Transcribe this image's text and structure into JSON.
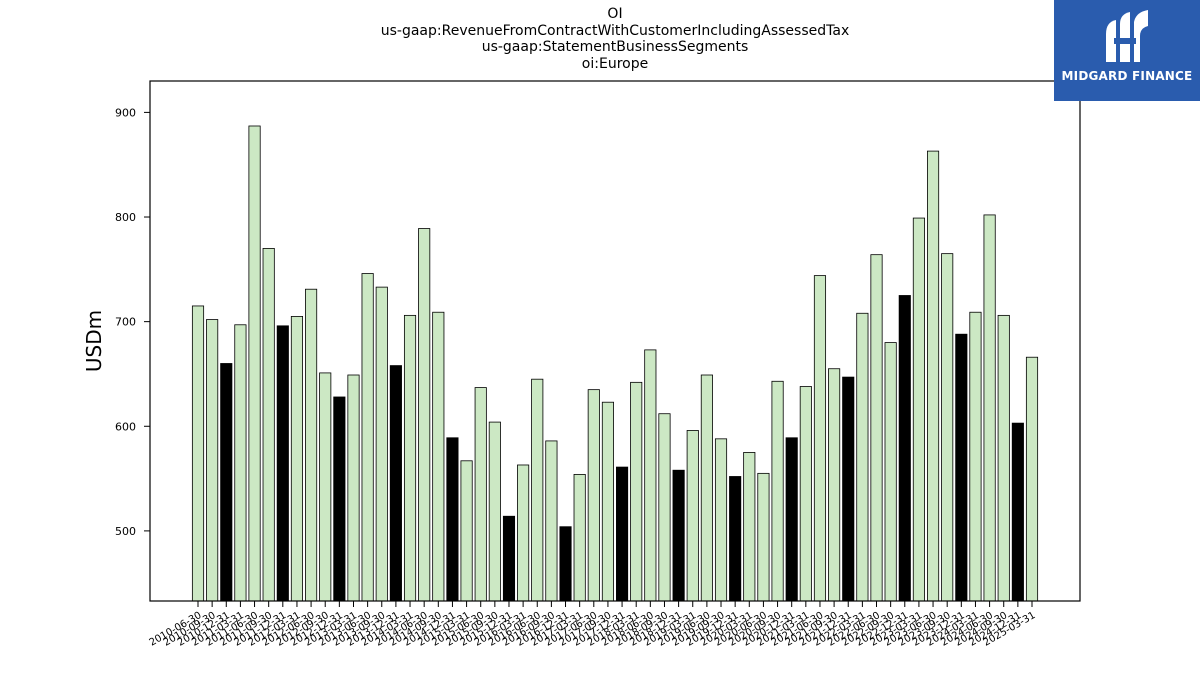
{
  "logo": {
    "text": "MIDGARD FINANCE",
    "background": "#2a5cae"
  },
  "chart_data": {
    "type": "bar",
    "title_lines": [
      "OI",
      "us-gaap:RevenueFromContractWithCustomerIncludingAssessedTax",
      "us-gaap:StatementBusinessSegments",
      "oi:Europe"
    ],
    "ylabel": "USDm",
    "xlabel": "",
    "ylim": [
      433,
      930
    ],
    "yticks": [
      500,
      600,
      700,
      800,
      900
    ],
    "colors": {
      "quarter": "#cce8c4",
      "annual": "#000000",
      "edge": "#000000"
    },
    "categories": [
      "2010-06-30",
      "2010-09-30",
      "2010-12-31",
      "2011-03-31",
      "2011-06-30",
      "2011-09-30",
      "2011-12-31",
      "2012-03-31",
      "2012-06-30",
      "2012-09-30",
      "2012-12-31",
      "2013-03-31",
      "2013-06-30",
      "2013-09-30",
      "2013-12-31",
      "2014-03-31",
      "2014-06-30",
      "2014-09-30",
      "2014-12-31",
      "2015-03-31",
      "2015-06-30",
      "2015-09-30",
      "2015-12-31",
      "2016-03-31",
      "2016-06-30",
      "2016-09-30",
      "2016-12-31",
      "2017-03-31",
      "2017-06-30",
      "2017-09-30",
      "2017-12-31",
      "2018-03-31",
      "2018-06-30",
      "2018-09-30",
      "2018-12-31",
      "2019-03-31",
      "2019-06-30",
      "2019-09-30",
      "2019-12-31",
      "2020-03-31",
      "2020-06-30",
      "2020-09-30",
      "2020-12-31",
      "2021-03-31",
      "2021-06-30",
      "2021-09-30",
      "2021-12-31",
      "2022-03-31",
      "2022-06-30",
      "2022-09-30",
      "2022-12-31",
      "2023-03-31",
      "2023-06-30",
      "2023-09-30",
      "2023-12-31",
      "2024-03-31",
      "2024-06-30",
      "2024-09-30",
      "2024-12-31",
      "2025-03-31"
    ],
    "values": [
      715,
      702,
      660,
      697,
      887,
      770,
      696,
      705,
      731,
      651,
      628,
      649,
      746,
      733,
      658,
      706,
      789,
      709,
      589,
      567,
      637,
      604,
      514,
      563,
      645,
      586,
      504,
      554,
      635,
      623,
      561,
      642,
      673,
      612,
      558,
      596,
      649,
      588,
      552,
      575,
      555,
      643,
      589,
      638,
      744,
      655,
      647,
      708,
      764,
      680,
      725,
      799,
      863,
      765,
      688,
      709,
      802,
      706,
      603,
      666
    ],
    "annual_flags": [
      0,
      0,
      1,
      0,
      0,
      0,
      1,
      0,
      0,
      0,
      1,
      0,
      0,
      0,
      1,
      0,
      0,
      0,
      1,
      0,
      0,
      0,
      1,
      0,
      0,
      0,
      1,
      0,
      0,
      0,
      1,
      0,
      0,
      0,
      1,
      0,
      0,
      0,
      1,
      0,
      0,
      0,
      1,
      0,
      0,
      0,
      1,
      0,
      0,
      0,
      1,
      0,
      0,
      0,
      1,
      0,
      0,
      0,
      1,
      0
    ]
  }
}
